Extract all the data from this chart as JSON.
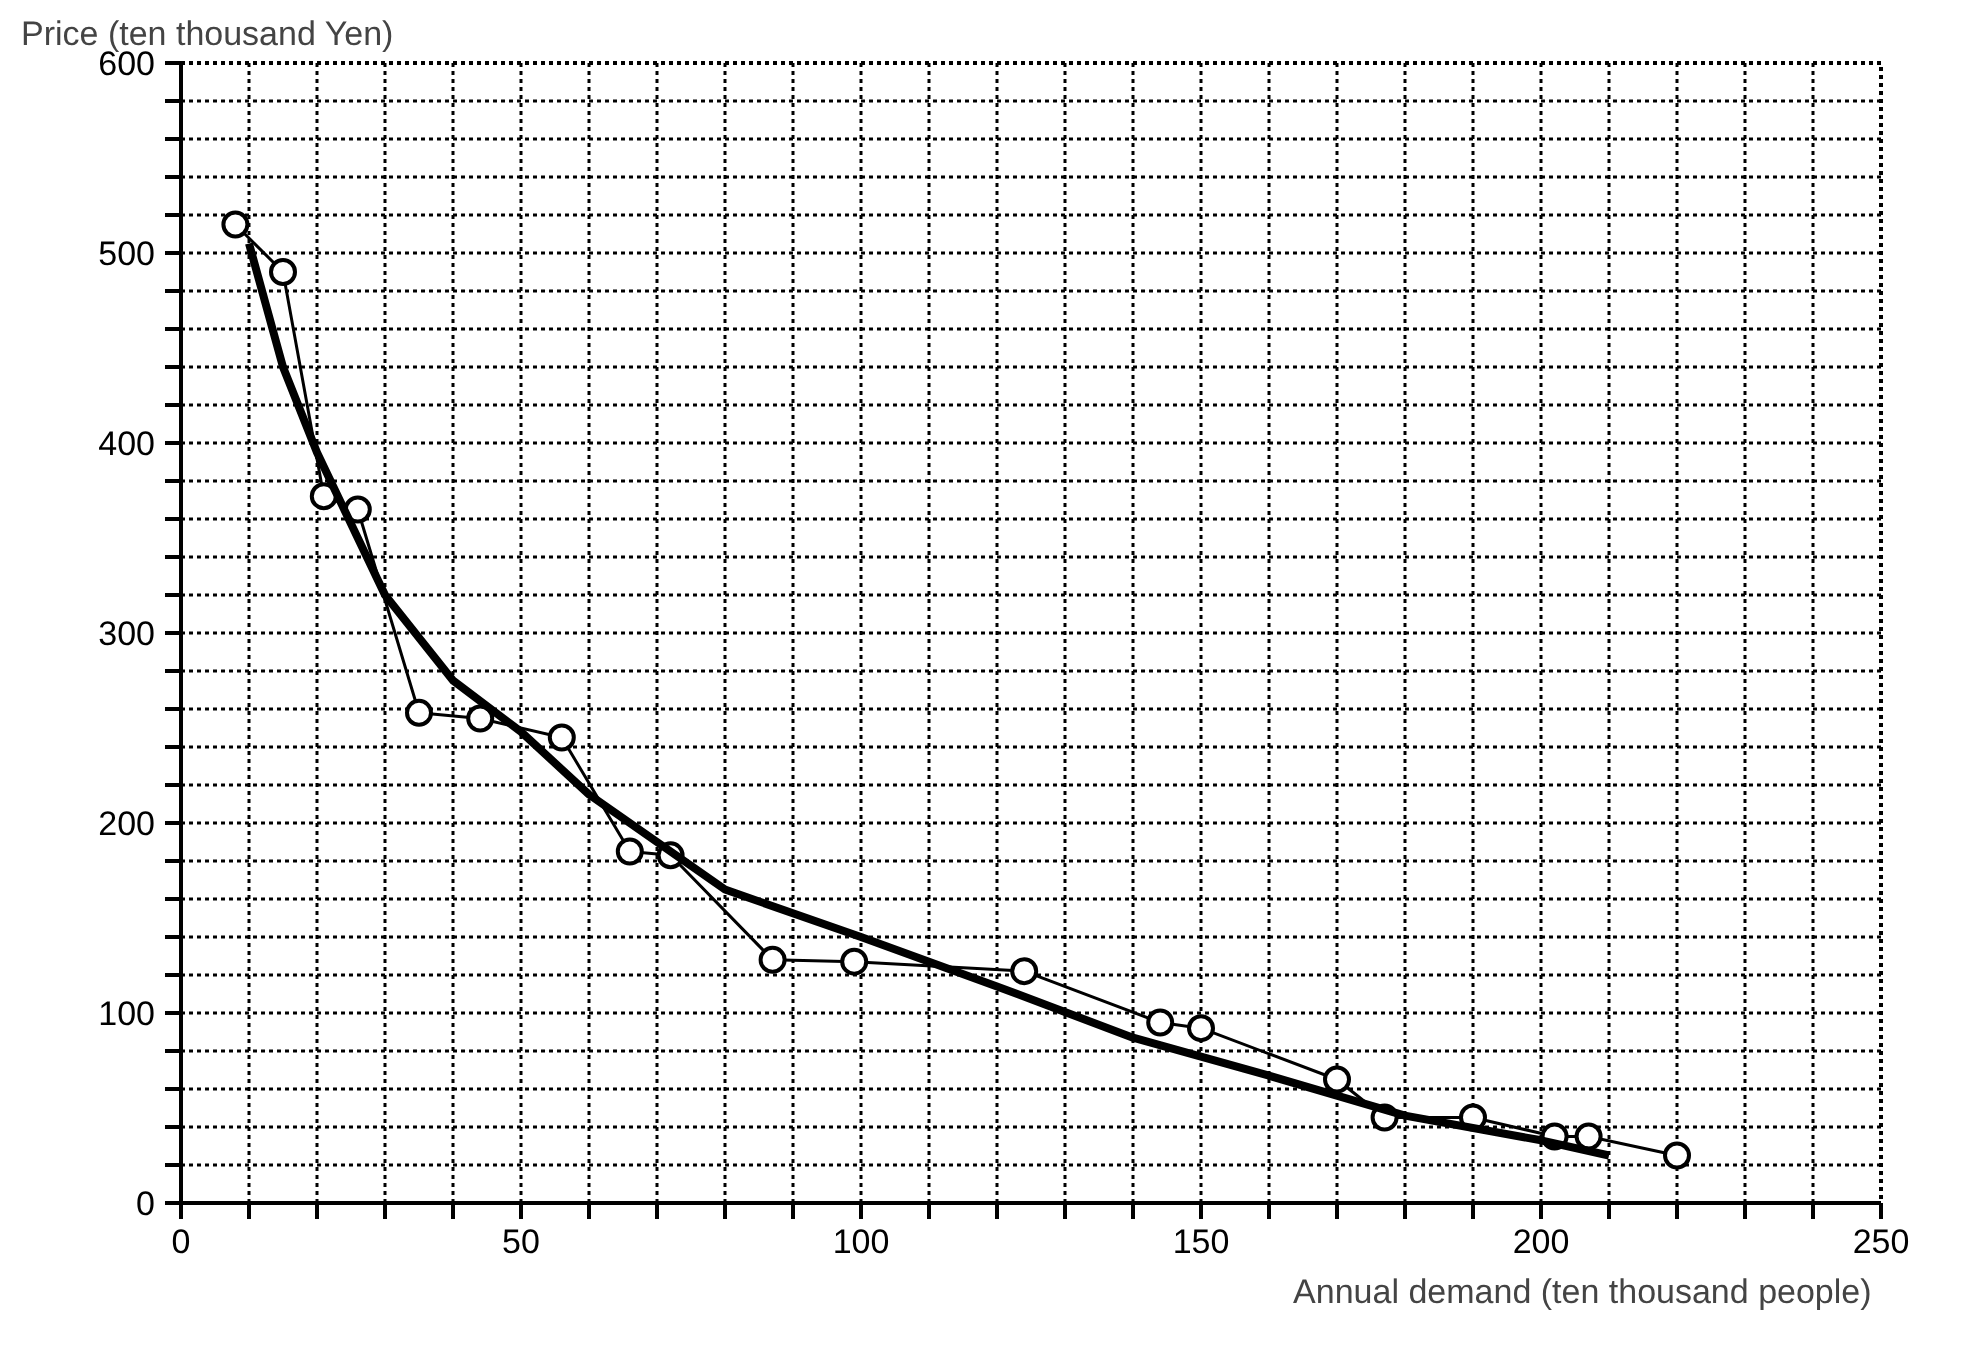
{
  "chart_data": {
    "type": "line",
    "xlabel": "Annual demand  (ten thousand people)",
    "ylabel": "Price  (ten thousand Yen)",
    "series": [
      {
        "color": "#000000",
        "marker": "circle",
        "x": [
          8,
          15,
          21,
          26,
          35,
          44,
          56,
          66,
          72,
          87,
          99,
          124,
          144,
          150,
          170,
          177,
          190,
          202,
          207,
          220
        ],
        "values": [
          515,
          490,
          372,
          365,
          258,
          255,
          245,
          185,
          183,
          128,
          127,
          122,
          95,
          92,
          65,
          45,
          45,
          35,
          35,
          25
        ]
      },
      {
        "color": "#000000",
        "marker": "none",
        "x": [
          10,
          15,
          20,
          30,
          40,
          50,
          60,
          70,
          80,
          100,
          120,
          140,
          160,
          180,
          200,
          210
        ],
        "values": [
          505,
          440,
          395,
          320,
          275,
          248,
          215,
          190,
          165,
          140,
          114,
          87,
          67,
          46,
          33,
          25
        ]
      }
    ],
    "xlim": [
      0,
      250
    ],
    "ylim": [
      0,
      600
    ],
    "xticks": [
      0,
      {
        "value": 10,
        "label": null
      },
      {
        "value": 20,
        "label": null
      },
      {
        "value": 30,
        "label": null
      },
      {
        "value": 40,
        "label": null
      },
      50,
      {
        "value": 60,
        "label": null
      },
      {
        "value": 70,
        "label": null
      },
      {
        "value": 80,
        "label": null
      },
      {
        "value": 90,
        "label": null
      },
      100,
      {
        "value": 110,
        "label": null
      },
      {
        "value": 120,
        "label": null
      },
      {
        "value": 130,
        "label": null
      },
      {
        "value": 140,
        "label": null
      },
      150,
      {
        "value": 160,
        "label": null
      },
      {
        "value": 170,
        "label": null
      },
      {
        "value": 180,
        "label": null
      },
      {
        "value": 190,
        "label": null
      },
      200,
      {
        "value": 210,
        "label": null
      },
      {
        "value": 220,
        "label": null
      },
      {
        "value": 230,
        "label": null
      },
      {
        "value": 240,
        "label": null
      },
      250
    ],
    "yticks": [
      0,
      {
        "value": 20,
        "label": null
      },
      {
        "value": 40,
        "label": null
      },
      {
        "value": 60,
        "label": null
      },
      {
        "value": 80,
        "label": null
      },
      100,
      {
        "value": 120,
        "label": null
      },
      {
        "value": 140,
        "label": null
      },
      {
        "value": 160,
        "label": null
      },
      {
        "value": 180,
        "label": null
      },
      200,
      {
        "value": 220,
        "label": null
      },
      {
        "value": 240,
        "label": null
      },
      {
        "value": 260,
        "label": null
      },
      {
        "value": 280,
        "label": null
      },
      300,
      {
        "value": 320,
        "label": null
      },
      {
        "value": 340,
        "label": null
      },
      {
        "value": 360,
        "label": null
      },
      {
        "value": 380,
        "label": null
      },
      400,
      {
        "value": 420,
        "label": null
      },
      {
        "value": 440,
        "label": null
      },
      {
        "value": 460,
        "label": null
      },
      {
        "value": 480,
        "label": null
      },
      500,
      {
        "value": 520,
        "label": null
      },
      {
        "value": 540,
        "label": null
      },
      {
        "value": 560,
        "label": null
      },
      {
        "value": 580,
        "label": null
      },
      600
    ],
    "grid": true
  }
}
